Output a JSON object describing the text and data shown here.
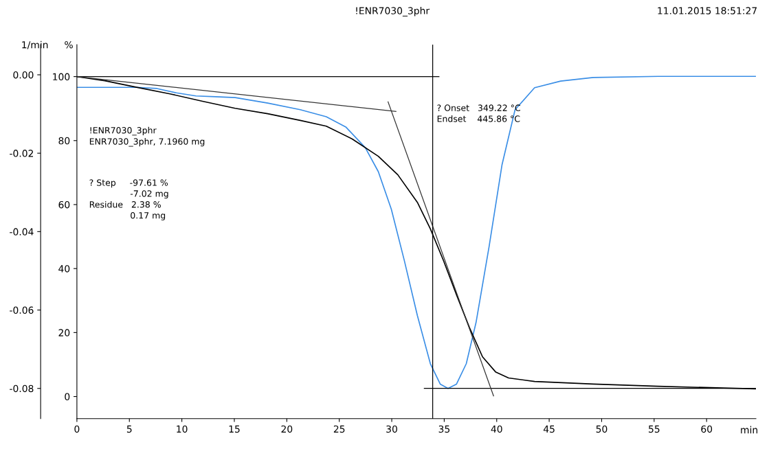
{
  "chart_data": {
    "type": "line",
    "title": "!ENR7030_3phr",
    "xlabel": "min",
    "ylabel": "%",
    "y2label": "1/min",
    "annotations": [
      "11.01.2015 18:51:27",
      "!ENR7030_3phr\nENR7030_3phr, 7.1960 mg",
      "? Step     -97.61 %\n               -7.02 mg\nResidue   2.38 %\n               0.17 mg",
      "? Onset   349.22 °C\nEndset    445.86 °C"
    ],
    "xlim": [
      0,
      64.7
    ],
    "xticks": [
      0,
      5,
      10,
      15,
      20,
      25,
      30,
      35,
      40,
      45,
      50,
      55,
      60
    ],
    "ylim": [
      -6.9,
      110
    ],
    "yticks": [
      0,
      20,
      40,
      60,
      80,
      100
    ],
    "y2lim": [
      -0.0877,
      0.0077
    ],
    "y2ticks": [
      {
        "value": -0.08,
        "label": "-0.08"
      },
      {
        "value": -0.06,
        "label": "-0.06"
      },
      {
        "value": -0.04,
        "label": "-0.04"
      },
      {
        "value": -0.02,
        "label": "-0.02"
      },
      {
        "value": 0,
        "label": "0.00"
      }
    ],
    "grid": false,
    "marker": "none",
    "line_style": "solid",
    "ref_lines": [
      {
        "axis": "x",
        "value": 33.9,
        "color": "#000000"
      }
    ],
    "series": [
      {
        "color": "#000000",
        "x": [
          0,
          2.67,
          5.77,
          8.87,
          11.97,
          15.08,
          18.18,
          21.28,
          23.76,
          26.24,
          28.72,
          30.58,
          32.44,
          33.68,
          34.93,
          36.17,
          37.41,
          38.65,
          39.89,
          41.13,
          43.61,
          49.19,
          55.4,
          64.7
        ],
        "values": [
          100,
          98.7,
          96.6,
          94.6,
          92.3,
          90.1,
          88.4,
          86.3,
          84.5,
          80.5,
          75.1,
          69.3,
          60.7,
          52.4,
          42.5,
          31.8,
          21.5,
          12.4,
          7.7,
          5.8,
          4.7,
          3.9,
          3.2,
          2.4
        ]
      },
      {
        "axis": "y2",
        "color": "#3a8ee6",
        "x": [
          0,
          2.67,
          5.77,
          7.63,
          9.49,
          11.35,
          13.21,
          15.08,
          18.18,
          21.28,
          23.76,
          25.62,
          27.48,
          28.72,
          29.96,
          31.2,
          32.44,
          33.68,
          34.62,
          35.36,
          36.17,
          37.1,
          38.03,
          39.27,
          40.51,
          41.75,
          43.61,
          46.09,
          49.19,
          55.4,
          64.7
        ],
        "values": [
          -0.0032,
          -0.0032,
          -0.0032,
          -0.0035,
          -0.0046,
          -0.0054,
          -0.0056,
          -0.0058,
          -0.0072,
          -0.0089,
          -0.0107,
          -0.0133,
          -0.0186,
          -0.0247,
          -0.0343,
          -0.0474,
          -0.0614,
          -0.0737,
          -0.0789,
          -0.08,
          -0.0789,
          -0.0737,
          -0.0632,
          -0.0439,
          -0.0229,
          -0.0089,
          -0.0033,
          -0.0016,
          -0.0007,
          -0.0004,
          -0.0004
        ]
      },
      {
        "color": "#000000",
        "x": [
          0,
          34.5
        ],
        "values": [
          100,
          100
        ]
      },
      {
        "color": "#333333",
        "x": [
          0,
          30.4
        ],
        "values": [
          100,
          89.1
        ]
      },
      {
        "color": "#333333",
        "x": [
          29.65,
          39.7
        ],
        "values": [
          92.1,
          0.2
        ]
      },
      {
        "axis": "y2",
        "color": "#000000",
        "x": [
          33.1,
          64.7
        ],
        "values": [
          -0.08,
          -0.08
        ]
      }
    ]
  }
}
